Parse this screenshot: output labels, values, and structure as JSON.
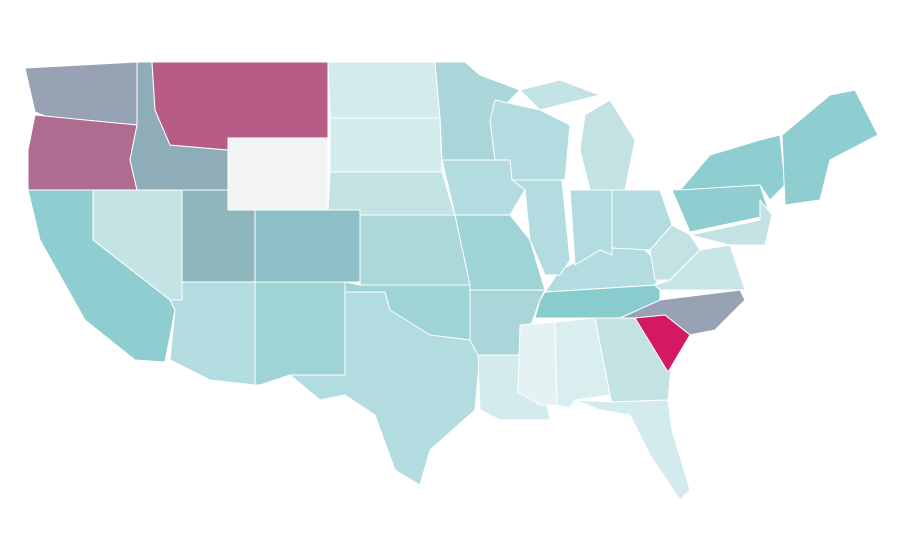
{
  "map": {
    "background": "#ffffff",
    "border": "#ffffff",
    "fills": [
      "#97a3b4",
      "#b06b90",
      "#8fadb9",
      "#b65c86",
      "#f2f3f4",
      "#d3ebed",
      "#d3ebed",
      "#c2e2e3",
      "#acd8da",
      "#8cc0c6",
      "#8fb5bd",
      "#c3e3e5",
      "#8ecdd0",
      "#b2dce0",
      "#9fd4d7",
      "#b2dce0",
      "#9fd4d7",
      "#aad6d9",
      "#b2dce0",
      "#9fd4d7",
      "#aad6d9",
      "#d3ebed",
      "#e4f2f3",
      "#d9eeee",
      "#c2e2e3",
      "#d3ebed",
      "#97a3b4",
      "#88ccce",
      "#b2dce0",
      "#b2dce0",
      "#b2dce0",
      "#c2e2e3",
      "#c2e2e3",
      "#b2dce0",
      "#b2dce0",
      "#c2e2e3",
      "#c7e5e6",
      "#8ecdd0",
      "#8ecdd0",
      "#8ecdd0",
      "#c2e2e3",
      "#d41863"
    ]
  }
}
